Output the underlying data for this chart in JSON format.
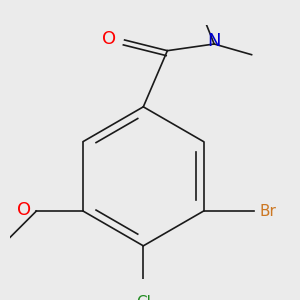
{
  "background_color": "#ebebeb",
  "bond_color": "#1a1a1a",
  "bond_width": 1.2,
  "atom_colors": {
    "O": "#ff0000",
    "N": "#0000cc",
    "Br": "#cc7722",
    "Cl": "#228b22",
    "C": "#1a1a1a"
  },
  "font_size": 11
}
